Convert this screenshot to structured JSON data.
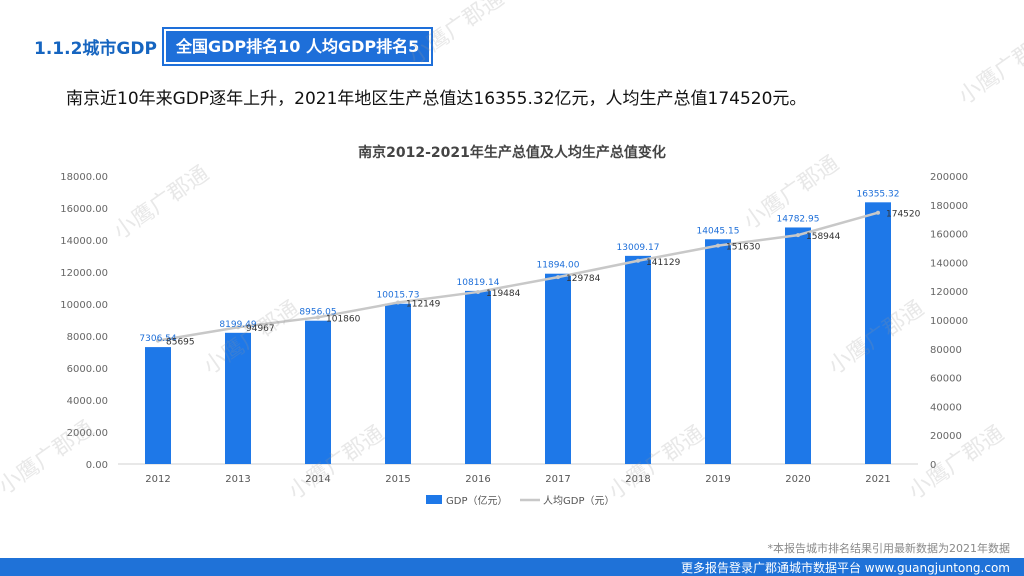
{
  "header": {
    "section_label": "1.1.2城市GDP",
    "badge": "全国GDP排名10  人均GDP排名5"
  },
  "headline": "南京近10年来GDP逐年上升，2021年地区生产总值达16355.32亿元，人均生产总值174520元。",
  "watermark_text": "小鹰广郡通",
  "chart_data": {
    "type": "bar",
    "title": "南京2012-2021年生产总值及人均生产总值变化",
    "categories": [
      "2012",
      "2013",
      "2014",
      "2015",
      "2016",
      "2017",
      "2018",
      "2019",
      "2020",
      "2021"
    ],
    "series": [
      {
        "name": "GDP（亿元）",
        "kind": "bar",
        "axis": "left",
        "values": [
          7306.54,
          8199.49,
          8956.05,
          10015.73,
          10819.14,
          11894.0,
          13009.17,
          14045.15,
          14782.95,
          16355.32
        ],
        "labels": [
          "7306.54",
          "8199.49",
          "8956.05",
          "10015.73",
          "10819.14",
          "11894.00",
          "13009.17",
          "14045.15",
          "14782.95",
          "16355.32"
        ],
        "color": "#1e78e8"
      },
      {
        "name": "人均GDP（元）",
        "kind": "line",
        "axis": "right",
        "values": [
          85695,
          94967,
          101860,
          112149,
          119484,
          129784,
          141129,
          151630,
          158944,
          174520
        ],
        "labels": [
          "85695",
          "94967",
          "101860",
          "112149",
          "119484",
          "129784",
          "141129",
          "151630",
          "158944",
          "174520"
        ],
        "color": "#c8c8c8"
      }
    ],
    "y_left": {
      "ylim": [
        0,
        18000
      ],
      "ticks": [
        "0.00",
        "2000.00",
        "4000.00",
        "6000.00",
        "8000.00",
        "10000.00",
        "12000.00",
        "14000.00",
        "16000.00",
        "18000.00"
      ]
    },
    "y_right": {
      "ylim": [
        0,
        200000
      ],
      "ticks": [
        "0",
        "20000",
        "40000",
        "60000",
        "80000",
        "100000",
        "120000",
        "140000",
        "160000",
        "180000",
        "200000"
      ]
    },
    "grid": false,
    "legend_position": "bottom"
  },
  "footnote": "*本报告城市排名结果引用最新数据为2021年数据",
  "footer": "更多报告登录广郡通城市数据平台 www.guangjuntong.com",
  "colors": {
    "accent": "#1e6fd9",
    "bar": "#1e78e8",
    "line": "#c8c8c8",
    "footer": "#1f72d8"
  }
}
